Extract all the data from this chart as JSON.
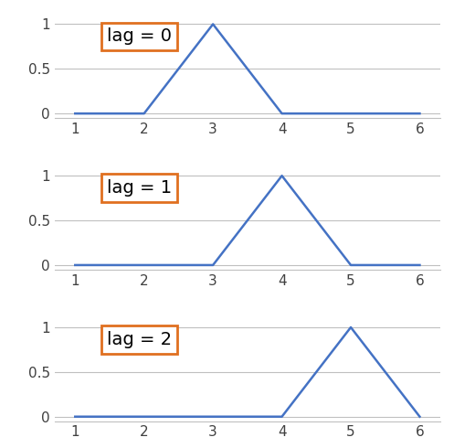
{
  "subplots": [
    {
      "label": "lag = 0",
      "x": [
        1,
        2,
        3,
        4,
        5,
        6
      ],
      "y": [
        0,
        0,
        1,
        0,
        0,
        0
      ]
    },
    {
      "label": "lag = 1",
      "x": [
        1,
        2,
        3,
        4,
        5,
        6
      ],
      "y": [
        0,
        0,
        0,
        1,
        0,
        0
      ]
    },
    {
      "label": "lag = 2",
      "x": [
        1,
        2,
        3,
        4,
        5,
        6
      ],
      "y": [
        0,
        0,
        0,
        0,
        1,
        0
      ]
    }
  ],
  "line_color": "#4472C4",
  "line_width": 1.8,
  "box_edge_color": "#E07020",
  "box_face_color": "#FFFFFF",
  "tick_color": "#404040",
  "xticks": [
    1,
    2,
    3,
    4,
    5,
    6
  ],
  "yticks": [
    0,
    0.5,
    1
  ],
  "ytick_labels": [
    "0",
    "0.5",
    "1"
  ],
  "ylim": [
    -0.05,
    1.12
  ],
  "xlim": [
    0.7,
    6.3
  ],
  "grid_color": "#C0C0C0",
  "grid_linewidth": 0.8,
  "label_fontsize": 14,
  "tick_fontsize": 11,
  "hspace": 0.45
}
